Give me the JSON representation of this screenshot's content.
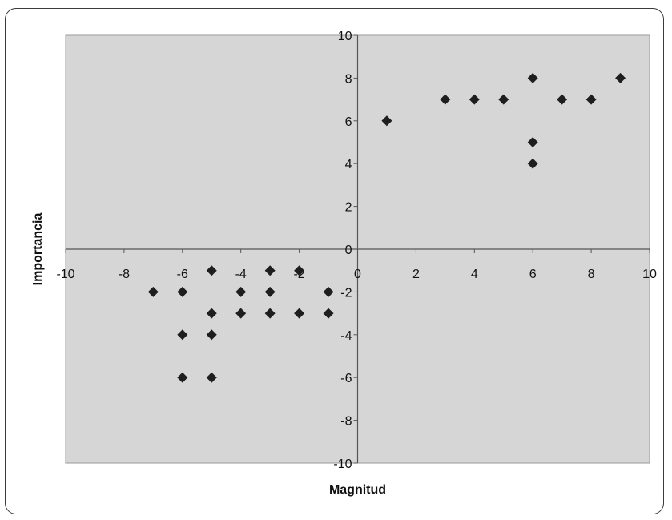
{
  "chart_data": {
    "type": "scatter",
    "title": "",
    "xlabel": "Magnitud",
    "ylabel": "Importancia",
    "xlim": [
      -10,
      10
    ],
    "ylim": [
      -10,
      10
    ],
    "x_ticks": [
      -10,
      -8,
      -6,
      -4,
      -2,
      0,
      2,
      4,
      6,
      8,
      10
    ],
    "y_ticks": [
      -10,
      -8,
      -6,
      -4,
      -2,
      0,
      2,
      4,
      6,
      8,
      10
    ],
    "grid": false,
    "legend": "none",
    "marker": "diamond",
    "colors": {
      "plot_area": "#d6d6d6",
      "marker": "#1e1e1e",
      "axis": "#555555"
    },
    "series": [
      {
        "points": [
          [
            1,
            6
          ],
          [
            3,
            7
          ],
          [
            4,
            7
          ],
          [
            5,
            7
          ],
          [
            6,
            8
          ],
          [
            6,
            5
          ],
          [
            6,
            4
          ],
          [
            7,
            7
          ],
          [
            8,
            7
          ],
          [
            9,
            8
          ],
          [
            -7,
            -2
          ],
          [
            -6,
            -2
          ],
          [
            -6,
            -4
          ],
          [
            -6,
            -6
          ],
          [
            -5,
            -1
          ],
          [
            -5,
            -3
          ],
          [
            -5,
            -4
          ],
          [
            -5,
            -6
          ],
          [
            -4,
            -2
          ],
          [
            -4,
            -3
          ],
          [
            -3,
            -1
          ],
          [
            -3,
            -2
          ],
          [
            -3,
            -3
          ],
          [
            -2,
            -1
          ],
          [
            -2,
            -3
          ],
          [
            -1,
            -2
          ],
          [
            -1,
            -3
          ]
        ]
      }
    ]
  }
}
